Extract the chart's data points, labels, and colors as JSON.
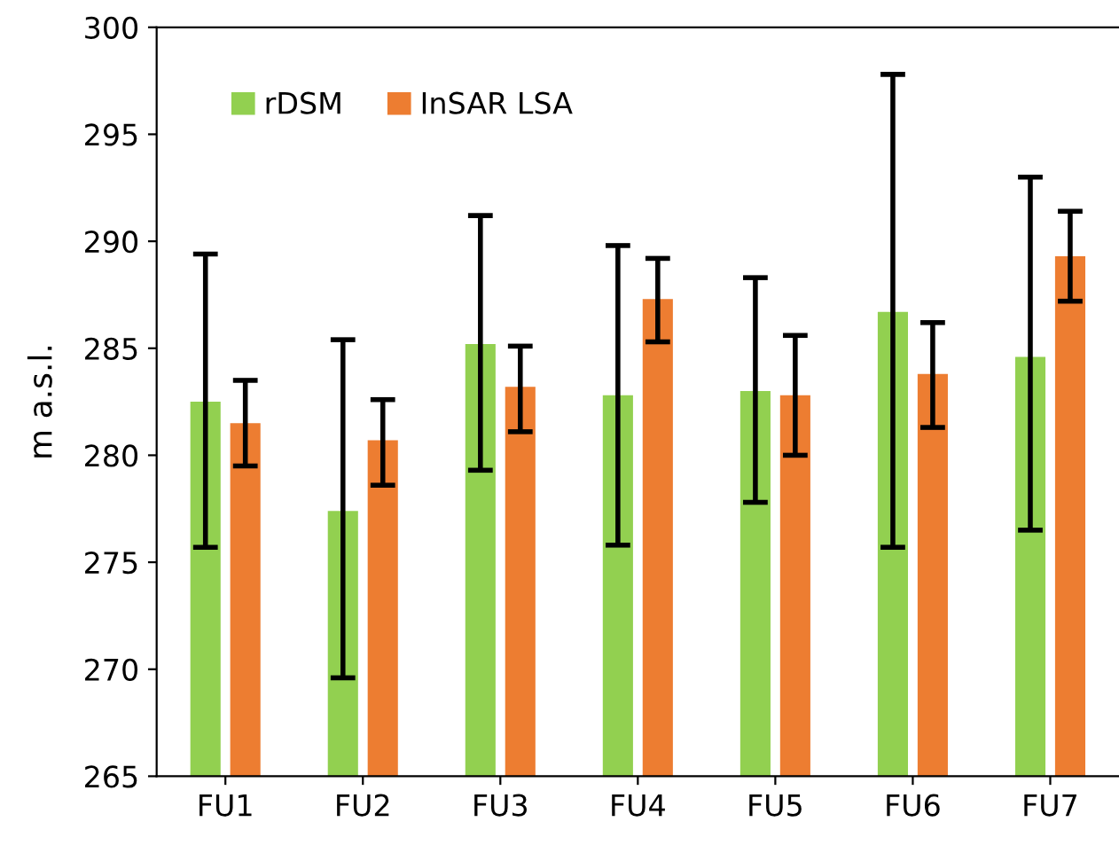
{
  "chart_data": {
    "type": "bar",
    "ylabel": "m a.s.l.",
    "categories": [
      "FU1",
      "FU2",
      "FU3",
      "FU4",
      "FU5",
      "FU6",
      "FU7"
    ],
    "series": [
      {
        "name": "rDSM",
        "color": "#92d050",
        "values": [
          282.5,
          277.4,
          285.2,
          282.8,
          283.0,
          286.7,
          284.6
        ],
        "errors": [
          [
            275.7,
            289.4
          ],
          [
            269.6,
            285.4
          ],
          [
            279.3,
            291.2
          ],
          [
            275.8,
            289.8
          ],
          [
            277.8,
            288.3
          ],
          [
            275.7,
            297.8
          ],
          [
            276.5,
            293.0
          ]
        ]
      },
      {
        "name": "InSAR LSA",
        "color": "#ed7d31",
        "values": [
          281.5,
          280.7,
          283.2,
          287.3,
          282.8,
          283.8,
          289.3
        ],
        "errors": [
          [
            279.5,
            283.5
          ],
          [
            278.6,
            282.6
          ],
          [
            281.1,
            285.1
          ],
          [
            285.3,
            289.2
          ],
          [
            280.0,
            285.6
          ],
          [
            281.3,
            286.2
          ],
          [
            287.2,
            291.4
          ]
        ]
      }
    ],
    "ylim": [
      265,
      300
    ],
    "yticks": [
      265,
      270,
      275,
      280,
      285,
      290,
      295,
      300
    ],
    "grid": false,
    "legend": "top left"
  }
}
